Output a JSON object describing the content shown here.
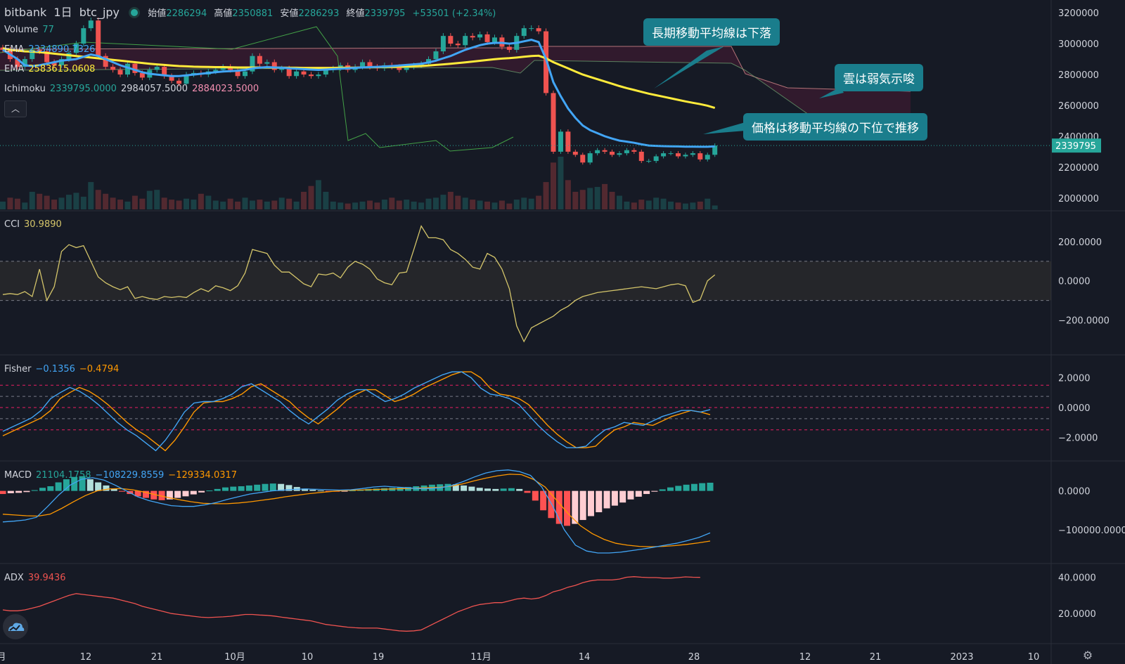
{
  "header": {
    "exchange": "bitbank",
    "interval": "1日",
    "symbol": "btc_jpy",
    "open_label": "始値",
    "open_value": "2286294",
    "high_label": "高値",
    "high_value": "2350881",
    "low_label": "安値",
    "low_value": "2286293",
    "close_label": "終値",
    "close_value": "2339795",
    "change": "+53501 (+2.34%)"
  },
  "legend": {
    "volume_name": "Volume",
    "volume_value": "77",
    "ema1_name": "EMA",
    "ema1_value": "2334890.7326",
    "ema2_name": "EMA",
    "ema2_value": "2583615.0608",
    "ichimoku_name": "Ichimoku",
    "ichimoku_v1": "2339795.0000",
    "ichimoku_v2": "2984057.5000",
    "ichimoku_v3": "2884023.5000",
    "cci_name": "CCI",
    "cci_value": "30.9890",
    "fisher_name": "Fisher",
    "fisher_v1": "−0.1356",
    "fisher_v2": "−0.4794",
    "macd_name": "MACD",
    "macd_v1": "21104.1758",
    "macd_v2": "−108229.8559",
    "macd_v3": "−129334.0317",
    "adx_name": "ADX",
    "adx_value": "39.9436"
  },
  "callouts": {
    "long_ema": "長期移動平均線は下落",
    "cloud": "雲は弱気示唆",
    "price": "価格は移動平均線の下位で推移"
  },
  "colors": {
    "background": "#161a25",
    "up": "#26a69a",
    "down": "#ef5350",
    "ema_short": "#42a5f5",
    "ema_long": "#ffeb3b",
    "cci": "#d4c56a",
    "fisher": "#42a5f5",
    "fisher_trigger": "#ff9800",
    "adx": "#ef5350",
    "callout": "#1a7d8c"
  },
  "chart_data": [
    {
      "type": "candlestick",
      "pane": "price",
      "y_ticks": [
        "3200000",
        "3000000",
        "2800000",
        "2600000",
        "2400000",
        "2200000",
        "2000000"
      ],
      "ylim": [
        1940000,
        3260000
      ],
      "last_price_label": "2339795",
      "x_ticks": [
        "月",
        "12",
        "21",
        "10月",
        "10",
        "19",
        "11月",
        "14",
        "28",
        "12",
        "21",
        "2023",
        "10"
      ],
      "close_series": [
        2960000,
        2900000,
        2850000,
        2900000,
        2960000,
        2950000,
        2880000,
        2860000,
        2900000,
        2940000,
        3000000,
        3100000,
        3150000,
        2920000,
        2850000,
        2830000,
        2800000,
        2870000,
        2810000,
        2780000,
        2830000,
        2850000,
        2790000,
        2760000,
        2740000,
        2800000,
        2810000,
        2800000,
        2820000,
        2830000,
        2850000,
        2830000,
        2790000,
        2820000,
        2920000,
        2870000,
        2880000,
        2830000,
        2840000,
        2790000,
        2820000,
        2800000,
        2790000,
        2800000,
        2830000,
        2840000,
        2860000,
        2830000,
        2850000,
        2880000,
        2850000,
        2840000,
        2860000,
        2850000,
        2830000,
        2850000,
        2860000,
        2870000,
        2900000,
        2950000,
        3050000,
        3000000,
        2990000,
        3050000,
        3040000,
        3060000,
        3010000,
        3040000,
        2980000,
        2960000,
        3050000,
        3100000,
        3100000,
        3080000,
        2680000,
        2300000,
        2430000,
        2300000,
        2280000,
        2230000,
        2290000,
        2310000,
        2300000,
        2280000,
        2290000,
        2310000,
        2300000,
        2240000,
        2240000,
        2270000,
        2290000,
        2290000,
        2270000,
        2280000,
        2290000,
        2250000,
        2280000,
        2339795
      ],
      "ema_short_series": [
        2960000,
        2930000,
        2900000,
        2860000,
        2855000,
        2860000,
        2870000,
        2880000,
        2890000,
        2895000,
        2900000,
        2915000,
        2930000,
        2920000,
        2900000,
        2880000,
        2860000,
        2845000,
        2830000,
        2815000,
        2805000,
        2800000,
        2795000,
        2790000,
        2790000,
        2795000,
        2800000,
        2805000,
        2810000,
        2815000,
        2820000,
        2822000,
        2825000,
        2830000,
        2840000,
        2845000,
        2848000,
        2846000,
        2844000,
        2840000,
        2838000,
        2835000,
        2832000,
        2830000,
        2832000,
        2835000,
        2838000,
        2840000,
        2843000,
        2846000,
        2848000,
        2850000,
        2852000,
        2855000,
        2858000,
        2862000,
        2866000,
        2870000,
        2878000,
        2890000,
        2905000,
        2920000,
        2940000,
        2960000,
        2975000,
        2990000,
        3000000,
        3005000,
        3005000,
        3000000,
        3005000,
        3015000,
        3025000,
        3010000,
        2900000,
        2750000,
        2660000,
        2580000,
        2520000,
        2470000,
        2440000,
        2420000,
        2400000,
        2385000,
        2372000,
        2365000,
        2358000,
        2348000,
        2340000,
        2338000,
        2336000,
        2335000,
        2334000,
        2333000,
        2333000,
        2332000,
        2332000,
        2334890
      ],
      "ema_long_series": [
        2970000,
        2960000,
        2955000,
        2950000,
        2948000,
        2945000,
        2940000,
        2935000,
        2930000,
        2925000,
        2920000,
        2915000,
        2910000,
        2905000,
        2900000,
        2895000,
        2890000,
        2885000,
        2880000,
        2875000,
        2870000,
        2866000,
        2862000,
        2858000,
        2855000,
        2853000,
        2851000,
        2850000,
        2849000,
        2848000,
        2848000,
        2847000,
        2846000,
        2846000,
        2846000,
        2846000,
        2846000,
        2845000,
        2845000,
        2844000,
        2844000,
        2843000,
        2843000,
        2843000,
        2843000,
        2843000,
        2844000,
        2844000,
        2845000,
        2846000,
        2847000,
        2848000,
        2849000,
        2850000,
        2851000,
        2852000,
        2853000,
        2855000,
        2858000,
        2862000,
        2866000,
        2870000,
        2874000,
        2879000,
        2884000,
        2889000,
        2894000,
        2899000,
        2903000,
        2906000,
        2910000,
        2915000,
        2920000,
        2922000,
        2905000,
        2880000,
        2860000,
        2840000,
        2820000,
        2800000,
        2785000,
        2770000,
        2755000,
        2740000,
        2725000,
        2712000,
        2700000,
        2688000,
        2676000,
        2666000,
        2656000,
        2646000,
        2636000,
        2626000,
        2617000,
        2608000,
        2598000,
        2583615
      ]
    },
    {
      "type": "bar",
      "pane": "volume",
      "title": "Volume",
      "last_value": "77",
      "values": [
        40,
        60,
        55,
        35,
        90,
        80,
        70,
        50,
        60,
        75,
        85,
        65,
        140,
        100,
        80,
        60,
        50,
        40,
        70,
        55,
        95,
        100,
        60,
        50,
        45,
        55,
        50,
        80,
        70,
        45,
        40,
        55,
        40,
        60,
        45,
        50,
        40,
        45,
        60,
        55,
        40,
        90,
        120,
        150,
        90,
        40,
        35,
        30,
        35,
        40,
        45,
        35,
        50,
        60,
        45,
        50,
        40,
        35,
        55,
        60,
        75,
        90,
        70,
        60,
        50,
        45,
        40,
        35,
        45,
        30,
        50,
        60,
        55,
        70,
        140,
        240,
        270,
        150,
        90,
        100,
        110,
        115,
        130,
        90,
        70,
        40,
        35,
        50,
        45,
        60,
        55,
        40,
        35,
        30,
        35,
        40,
        55,
        20
      ]
    },
    {
      "type": "line",
      "pane": "cci",
      "title": "CCI",
      "last_value": "30.9890",
      "y_ticks": [
        "200.0000",
        "0.0000",
        "−200.0000"
      ],
      "ylim": [
        -360,
        340
      ],
      "band": [
        -100,
        100
      ],
      "values": [
        -70,
        -65,
        -70,
        -55,
        -80,
        60,
        -100,
        -30,
        150,
        185,
        170,
        180,
        100,
        20,
        -10,
        -30,
        -45,
        -30,
        -90,
        -80,
        -90,
        -95,
        -80,
        -85,
        -80,
        -85,
        -60,
        -40,
        -55,
        -25,
        -35,
        -50,
        -25,
        40,
        160,
        150,
        140,
        80,
        45,
        45,
        15,
        -15,
        -30,
        35,
        30,
        40,
        15,
        70,
        100,
        85,
        60,
        10,
        -10,
        -20,
        40,
        45,
        160,
        280,
        220,
        220,
        210,
        160,
        140,
        110,
        70,
        60,
        140,
        120,
        60,
        -40,
        -230,
        -310,
        -240,
        -220,
        -200,
        -180,
        -150,
        -130,
        -100,
        -80,
        -70,
        -60,
        -55,
        -50,
        -45,
        -40,
        -35,
        -30,
        -35,
        -40,
        -30,
        -20,
        -15,
        -25,
        -110,
        -95,
        0,
        30.989
      ]
    },
    {
      "type": "line",
      "pane": "fisher",
      "title": "Fisher",
      "y_ticks": [
        "2.0000",
        "0.0000",
        "−2.0000"
      ],
      "ylim": [
        -3.4,
        3.4
      ],
      "levels": [
        1.5,
        0.75,
        0,
        -0.75,
        -1.5
      ],
      "series": [
        {
          "name": "Fisher",
          "last_value": "−0.1356",
          "values": [
            -1.6,
            -1.3,
            -1.0,
            -0.7,
            -0.2,
            0.6,
            1.0,
            1.35,
            1.1,
            0.7,
            0.2,
            -0.4,
            -1.0,
            -1.5,
            -1.9,
            -2.4,
            -2.9,
            -2.2,
            -1.3,
            -0.3,
            0.3,
            0.4,
            0.4,
            0.6,
            0.9,
            1.4,
            1.6,
            1.2,
            0.8,
            0.4,
            -0.2,
            -0.7,
            -1.1,
            -0.6,
            -0.1,
            0.5,
            0.9,
            1.2,
            1.2,
            0.8,
            0.4,
            0.6,
            0.9,
            1.3,
            1.6,
            1.9,
            2.2,
            2.4,
            2.4,
            2.0,
            1.3,
            0.9,
            0.8,
            0.6,
            0.2,
            -0.5,
            -1.2,
            -1.8,
            -2.3,
            -2.7,
            -2.7,
            -2.6,
            -2.0,
            -1.5,
            -1.3,
            -1.0,
            -1.1,
            -1.2,
            -0.9,
            -0.6,
            -0.4,
            -0.2,
            -0.2,
            -0.3,
            -0.1356
          ]
        },
        {
          "name": "Trigger",
          "last_value": "−0.4794",
          "values": [
            -1.9,
            -1.6,
            -1.3,
            -1.0,
            -0.7,
            -0.2,
            0.6,
            1.0,
            1.35,
            1.1,
            0.7,
            0.2,
            -0.4,
            -1.0,
            -1.5,
            -1.9,
            -2.4,
            -2.9,
            -2.2,
            -1.3,
            -0.3,
            0.3,
            0.4,
            0.4,
            0.6,
            0.9,
            1.4,
            1.6,
            1.2,
            0.8,
            0.4,
            -0.2,
            -0.7,
            -1.1,
            -0.6,
            -0.1,
            0.5,
            0.9,
            1.2,
            1.2,
            0.8,
            0.4,
            0.6,
            0.9,
            1.3,
            1.6,
            1.9,
            2.2,
            2.4,
            2.4,
            2.0,
            1.3,
            0.9,
            0.8,
            0.6,
            0.2,
            -0.5,
            -1.2,
            -1.8,
            -2.3,
            -2.7,
            -2.7,
            -2.6,
            -2.0,
            -1.5,
            -1.3,
            -1.0,
            -1.1,
            -1.2,
            -0.9,
            -0.6,
            -0.4,
            -0.2,
            -0.3,
            -0.4794
          ]
        }
      ]
    },
    {
      "type": "bar",
      "pane": "macd",
      "title": "MACD",
      "y_ticks": [
        "0.0000",
        "−100000.0000"
      ],
      "ylim": [
        -180000,
        70000
      ],
      "histogram_last": "21104.1758",
      "macd_last": "−108229.8559",
      "signal_last": "−129334.0317",
      "histogram": [
        -8000,
        -6000,
        -5000,
        -3000,
        2000,
        8000,
        12000,
        22000,
        30000,
        36000,
        38000,
        30000,
        22000,
        14000,
        6000,
        -2000,
        -8000,
        -14000,
        -18000,
        -22000,
        -24000,
        -22000,
        -18000,
        -14000,
        -9000,
        -4000,
        1000,
        5000,
        9000,
        11000,
        12000,
        14000,
        16000,
        18000,
        19000,
        18000,
        15000,
        10000,
        6000,
        3000,
        1000,
        -1000,
        -2000,
        -1000,
        1000,
        3000,
        5000,
        6000,
        7000,
        8000,
        9000,
        10000,
        12000,
        14000,
        16000,
        17000,
        18000,
        17000,
        14000,
        11000,
        8000,
        6000,
        5000,
        6000,
        7000,
        5000,
        -5000,
        -25000,
        -50000,
        -70000,
        -85000,
        -90000,
        -85000,
        -75000,
        -65000,
        -55000,
        -45000,
        -38000,
        -30000,
        -22000,
        -15000,
        -8000,
        -2000,
        4000,
        9000,
        13000,
        16000,
        18000,
        20000,
        21104
      ],
      "macd_line": [
        -80000,
        -78000,
        -75000,
        -68000,
        -40000,
        -10000,
        15000,
        30000,
        34000,
        28000,
        15000,
        0,
        -15000,
        -25000,
        -32000,
        -38000,
        -40000,
        -40000,
        -36000,
        -30000,
        -22000,
        -15000,
        -8000,
        -4000,
        0,
        2000,
        4000,
        5000,
        4000,
        3000,
        2000,
        3000,
        6000,
        10000,
        12000,
        10000,
        8000,
        6000,
        6000,
        8000,
        14000,
        24000,
        36000,
        46000,
        52000,
        54000,
        50000,
        40000,
        10000,
        -40000,
        -100000,
        -140000,
        -155000,
        -160000,
        -160000,
        -158000,
        -154000,
        -150000,
        -145000,
        -140000,
        -135000,
        -128000,
        -120000,
        -108229
      ],
      "signal_line": [
        -60000,
        -62000,
        -64000,
        -65000,
        -60000,
        -45000,
        -28000,
        -12000,
        0,
        5000,
        6000,
        3000,
        -3000,
        -10000,
        -17000,
        -23000,
        -28000,
        -32000,
        -33000,
        -33000,
        -31000,
        -28000,
        -24000,
        -20000,
        -15000,
        -11000,
        -7000,
        -4000,
        -1000,
        1000,
        2000,
        3000,
        4000,
        5000,
        6000,
        7000,
        8000,
        9000,
        12000,
        18000,
        26000,
        33000,
        39000,
        43000,
        42000,
        30000,
        10000,
        -25000,
        -60000,
        -90000,
        -110000,
        -125000,
        -135000,
        -140000,
        -143000,
        -144000,
        -143000,
        -141000,
        -138000,
        -134000,
        -129334
      ]
    },
    {
      "type": "line",
      "pane": "adx",
      "title": "ADX",
      "last_value": "39.9436",
      "y_ticks": [
        "40.0000",
        "20.0000"
      ],
      "ylim": [
        5,
        46
      ],
      "values": [
        22,
        21.5,
        21.5,
        22,
        23,
        24,
        25.5,
        27,
        28.5,
        30,
        31,
        30.5,
        30,
        29.5,
        29,
        28.5,
        27.5,
        26.5,
        25.5,
        24,
        23,
        22,
        21,
        20,
        19.5,
        19,
        18.5,
        18,
        17.8,
        18,
        18.2,
        18.5,
        19,
        19.5,
        19.5,
        19.2,
        19,
        18.6,
        18,
        17.5,
        17,
        16.5,
        16,
        15,
        14,
        13.5,
        13,
        12.5,
        12.2,
        12,
        12,
        12,
        11.5,
        11,
        10.5,
        10.3,
        10.5,
        11,
        13,
        15,
        17,
        19,
        21,
        22.5,
        24,
        25,
        25.5,
        26,
        26,
        27,
        28,
        28.5,
        28,
        28.5,
        30,
        32,
        33,
        34.5,
        35.5,
        37,
        38,
        38.5,
        38.5,
        38.5,
        39,
        40,
        40.3,
        40,
        39.8,
        39.8,
        39.5,
        39.5,
        39.8,
        40.2,
        40,
        39.9436
      ]
    }
  ]
}
